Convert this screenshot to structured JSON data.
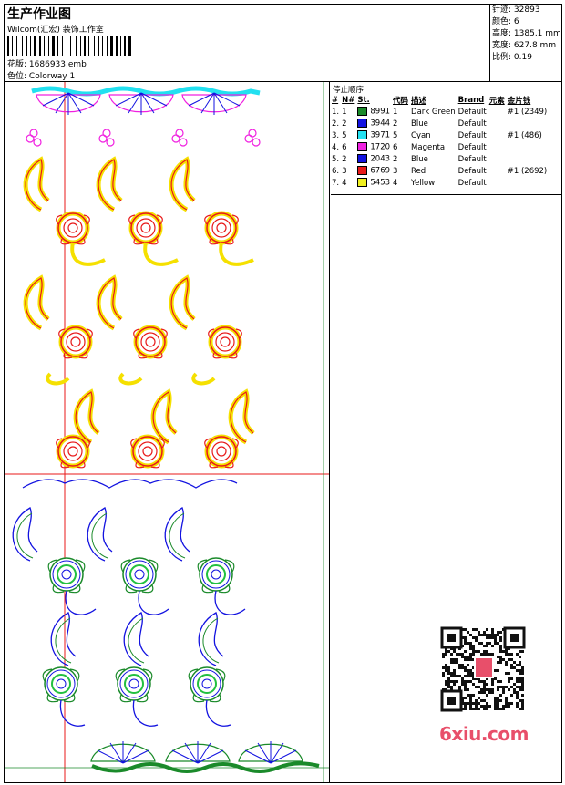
{
  "header": {
    "title": "生产作业图",
    "studio": "Wilcom(汇宏) 装饰工作室",
    "design_file_label": "花版:",
    "design_file": "1686933.emb",
    "colorway_label": "色位:",
    "colorway": "Colorway 1"
  },
  "stats": {
    "stitches_label": "针迹:",
    "stitches": "32893",
    "colors_label": "颜色:",
    "colors": "6",
    "height_label": "高度:",
    "height": "1385.1 mm",
    "width_label": "宽度:",
    "width": "627.8 mm",
    "scale_label": "比例:",
    "scale": "0.19"
  },
  "stop_sequence": {
    "label": "停止顺序:",
    "columns": [
      "#",
      "N#",
      "St.",
      "代码",
      "描述",
      "Brand",
      "元素",
      "金片钱"
    ],
    "rows": [
      {
        "num": "1.",
        "n": "1",
        "color": "#1a8a2a",
        "code": "8991",
        "idx": "1",
        "desc": "Dark Green",
        "brand": "Default",
        "element": "",
        "sequin": "#1 (2349)"
      },
      {
        "num": "2.",
        "n": "2",
        "color": "#1212e0",
        "code": "3944",
        "idx": "2",
        "desc": "Blue",
        "brand": "Default",
        "element": "",
        "sequin": ""
      },
      {
        "num": "3.",
        "n": "5",
        "color": "#22e0f0",
        "code": "3971",
        "idx": "5",
        "desc": "Cyan",
        "brand": "Default",
        "element": "",
        "sequin": "#1 (486)"
      },
      {
        "num": "4.",
        "n": "6",
        "color": "#f020e0",
        "code": "1720",
        "idx": "6",
        "desc": "Magenta",
        "brand": "Default",
        "element": "",
        "sequin": ""
      },
      {
        "num": "5.",
        "n": "2",
        "color": "#1212e0",
        "code": "2043",
        "idx": "2",
        "desc": "Blue",
        "brand": "Default",
        "element": "",
        "sequin": ""
      },
      {
        "num": "6.",
        "n": "3",
        "color": "#e81a1a",
        "code": "6769",
        "idx": "3",
        "desc": "Red",
        "brand": "Default",
        "element": "",
        "sequin": "#1 (2692)"
      },
      {
        "num": "7.",
        "n": "4",
        "color": "#f0f020",
        "code": "5453",
        "idx": "4",
        "desc": "Yellow",
        "brand": "Default",
        "element": "",
        "sequin": ""
      }
    ]
  },
  "watermark": {
    "brand": "6xiu.com"
  }
}
